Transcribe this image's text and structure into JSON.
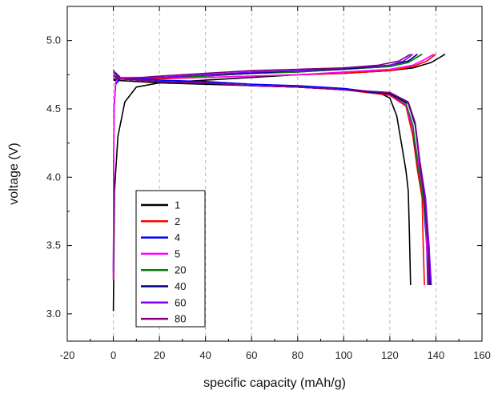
{
  "chart_data": {
    "type": "line",
    "xlabel": "specific capacity (mAh/g)",
    "ylabel": "voltage (V)",
    "xlim": [
      -20,
      160
    ],
    "ylim": [
      2.8,
      5.25
    ],
    "xticks": [
      "-20",
      "0",
      "20",
      "40",
      "60",
      "80",
      "100",
      "120",
      "140",
      "160"
    ],
    "yticks": [
      "3.0",
      "3.5",
      "4.0",
      "4.5",
      "5.0"
    ],
    "grid": "vertical dashed at x=0 and each major tick",
    "legend_placement": "lower-left",
    "series": [
      {
        "name": "1",
        "color": "#000000",
        "charge": [
          [
            0,
            3.02
          ],
          [
            0.5,
            3.9
          ],
          [
            2,
            4.3
          ],
          [
            5,
            4.55
          ],
          [
            10,
            4.66
          ],
          [
            20,
            4.69
          ],
          [
            40,
            4.71
          ],
          [
            60,
            4.73
          ],
          [
            80,
            4.75
          ],
          [
            100,
            4.76
          ],
          [
            120,
            4.78
          ],
          [
            130,
            4.8
          ],
          [
            138,
            4.84
          ],
          [
            144,
            4.9
          ]
        ],
        "discharge": [
          [
            0,
            4.71
          ],
          [
            20,
            4.69
          ],
          [
            40,
            4.68
          ],
          [
            60,
            4.67
          ],
          [
            80,
            4.66
          ],
          [
            100,
            4.64
          ],
          [
            115,
            4.62
          ],
          [
            120,
            4.58
          ],
          [
            123,
            4.45
          ],
          [
            125,
            4.25
          ],
          [
            127,
            4.05
          ],
          [
            128,
            3.9
          ],
          [
            128.5,
            3.6
          ],
          [
            129,
            3.21
          ]
        ]
      },
      {
        "name": "2",
        "color": "#ff0000",
        "charge": [
          [
            0,
            3.25
          ],
          [
            0.3,
            4.5
          ],
          [
            1,
            4.68
          ],
          [
            3,
            4.72
          ],
          [
            20,
            4.72
          ],
          [
            40,
            4.73
          ],
          [
            60,
            4.74
          ],
          [
            80,
            4.75
          ],
          [
            100,
            4.76
          ],
          [
            120,
            4.78
          ],
          [
            130,
            4.81
          ],
          [
            136,
            4.85
          ],
          [
            140,
            4.9
          ]
        ],
        "discharge": [
          [
            0,
            4.77
          ],
          [
            3,
            4.72
          ],
          [
            20,
            4.7
          ],
          [
            40,
            4.69
          ],
          [
            60,
            4.67
          ],
          [
            80,
            4.66
          ],
          [
            100,
            4.64
          ],
          [
            120,
            4.6
          ],
          [
            127,
            4.52
          ],
          [
            130,
            4.3
          ],
          [
            132,
            4.05
          ],
          [
            134,
            3.85
          ],
          [
            134.5,
            3.5
          ],
          [
            135,
            3.21
          ]
        ]
      },
      {
        "name": "4",
        "color": "#0000ff",
        "charge": [
          [
            0,
            3.3
          ],
          [
            0.3,
            4.5
          ],
          [
            1,
            4.68
          ],
          [
            3,
            4.72
          ],
          [
            20,
            4.73
          ],
          [
            40,
            4.74
          ],
          [
            60,
            4.76
          ],
          [
            80,
            4.77
          ],
          [
            100,
            4.79
          ],
          [
            120,
            4.81
          ],
          [
            128,
            4.84
          ],
          [
            134,
            4.9
          ]
        ],
        "discharge": [
          [
            0,
            4.78
          ],
          [
            3,
            4.73
          ],
          [
            20,
            4.71
          ],
          [
            40,
            4.7
          ],
          [
            60,
            4.68
          ],
          [
            80,
            4.67
          ],
          [
            100,
            4.65
          ],
          [
            120,
            4.61
          ],
          [
            127,
            4.53
          ],
          [
            130,
            4.35
          ],
          [
            132,
            4.1
          ],
          [
            134.5,
            3.85
          ],
          [
            136,
            3.5
          ],
          [
            136.5,
            3.21
          ]
        ]
      },
      {
        "name": "5",
        "color": "#ff00ff",
        "charge": [
          [
            0,
            3.25
          ],
          [
            0.3,
            4.5
          ],
          [
            1,
            4.7
          ],
          [
            3,
            4.73
          ],
          [
            20,
            4.73
          ],
          [
            40,
            4.73
          ],
          [
            60,
            4.74
          ],
          [
            80,
            4.75
          ],
          [
            100,
            4.77
          ],
          [
            120,
            4.79
          ],
          [
            130,
            4.82
          ],
          [
            135,
            4.86
          ],
          [
            139,
            4.9
          ]
        ],
        "discharge": [
          [
            0,
            4.79
          ],
          [
            0.5,
            4.74
          ],
          [
            3,
            4.72
          ],
          [
            20,
            4.7
          ],
          [
            40,
            4.69
          ],
          [
            60,
            4.67
          ],
          [
            80,
            4.66
          ],
          [
            100,
            4.64
          ],
          [
            120,
            4.61
          ],
          [
            127,
            4.53
          ],
          [
            130,
            4.35
          ],
          [
            133,
            4.05
          ],
          [
            135,
            3.85
          ],
          [
            136,
            3.5
          ],
          [
            137,
            3.21
          ]
        ]
      },
      {
        "name": "20",
        "color": "#008000",
        "charge": [
          [
            0,
            4.72
          ],
          [
            5,
            4.72
          ],
          [
            20,
            4.73
          ],
          [
            40,
            4.74
          ],
          [
            60,
            4.76
          ],
          [
            80,
            4.77
          ],
          [
            100,
            4.79
          ],
          [
            120,
            4.81
          ],
          [
            128,
            4.84
          ],
          [
            134,
            4.9
          ]
        ],
        "discharge": [
          [
            0,
            4.75
          ],
          [
            3,
            4.72
          ],
          [
            20,
            4.7
          ],
          [
            40,
            4.69
          ],
          [
            60,
            4.67
          ],
          [
            80,
            4.66
          ],
          [
            100,
            4.64
          ],
          [
            120,
            4.61
          ],
          [
            127,
            4.54
          ],
          [
            130,
            4.38
          ],
          [
            132,
            4.1
          ],
          [
            134.5,
            3.85
          ],
          [
            136.5,
            3.5
          ],
          [
            137,
            3.21
          ]
        ]
      },
      {
        "name": "40",
        "color": "#000080",
        "charge": [
          [
            0,
            4.72
          ],
          [
            5,
            4.72
          ],
          [
            20,
            4.73
          ],
          [
            40,
            4.75
          ],
          [
            60,
            4.76
          ],
          [
            80,
            4.78
          ],
          [
            100,
            4.79
          ],
          [
            120,
            4.82
          ],
          [
            128,
            4.85
          ],
          [
            132,
            4.9
          ]
        ],
        "discharge": [
          [
            0,
            4.74
          ],
          [
            3,
            4.72
          ],
          [
            20,
            4.7
          ],
          [
            40,
            4.69
          ],
          [
            60,
            4.67
          ],
          [
            80,
            4.66
          ],
          [
            100,
            4.64
          ],
          [
            120,
            4.61
          ],
          [
            128,
            4.54
          ],
          [
            131,
            4.38
          ],
          [
            133,
            4.1
          ],
          [
            135,
            3.85
          ],
          [
            137,
            3.5
          ],
          [
            137.5,
            3.21
          ]
        ]
      },
      {
        "name": "60",
        "color": "#8000ff",
        "charge": [
          [
            0,
            4.72
          ],
          [
            5,
            4.72
          ],
          [
            20,
            4.73
          ],
          [
            40,
            4.75
          ],
          [
            60,
            4.77
          ],
          [
            80,
            4.78
          ],
          [
            100,
            4.8
          ],
          [
            120,
            4.82
          ],
          [
            126,
            4.85
          ],
          [
            130,
            4.9
          ]
        ],
        "discharge": [
          [
            0,
            4.74
          ],
          [
            3,
            4.72
          ],
          [
            20,
            4.7
          ],
          [
            40,
            4.69
          ],
          [
            60,
            4.67
          ],
          [
            80,
            4.66
          ],
          [
            100,
            4.64
          ],
          [
            120,
            4.62
          ],
          [
            128,
            4.55
          ],
          [
            131,
            4.4
          ],
          [
            133,
            4.12
          ],
          [
            135.5,
            3.85
          ],
          [
            137,
            3.5
          ],
          [
            138,
            3.21
          ]
        ]
      },
      {
        "name": "80",
        "color": "#800080",
        "charge": [
          [
            0,
            4.72
          ],
          [
            5,
            4.72
          ],
          [
            20,
            4.74
          ],
          [
            40,
            4.76
          ],
          [
            60,
            4.78
          ],
          [
            80,
            4.79
          ],
          [
            100,
            4.8
          ],
          [
            115,
            4.82
          ],
          [
            124,
            4.85
          ],
          [
            129,
            4.9
          ]
        ],
        "discharge": [
          [
            0,
            4.74
          ],
          [
            3,
            4.72
          ],
          [
            20,
            4.7
          ],
          [
            40,
            4.69
          ],
          [
            60,
            4.67
          ],
          [
            80,
            4.66
          ],
          [
            100,
            4.64
          ],
          [
            120,
            4.62
          ],
          [
            128,
            4.55
          ],
          [
            131,
            4.4
          ],
          [
            133,
            4.12
          ],
          [
            135,
            3.85
          ],
          [
            136.5,
            3.5
          ],
          [
            137,
            3.21
          ]
        ]
      }
    ]
  }
}
